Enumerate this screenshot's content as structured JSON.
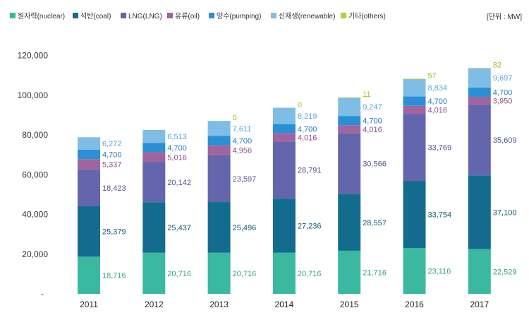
{
  "chart_data": {
    "type": "bar",
    "stacked": true,
    "unit_label": "[단위 : MW]",
    "categories": [
      "2011",
      "2012",
      "2013",
      "2014",
      "2015",
      "2016",
      "2017"
    ],
    "y_ticks": [
      "-",
      "20,000",
      "40,000",
      "60,000",
      "80,000",
      "100,000",
      "120,000"
    ],
    "ylim": [
      0,
      120000
    ],
    "legend_position": "top-left",
    "series": [
      {
        "name": "원자력(nuclear)",
        "color": "#3bb8a0",
        "label_color": "#2ea58d",
        "values": [
          18716,
          20716,
          20716,
          20716,
          21716,
          23116,
          22529
        ],
        "labels": [
          "18,716",
          "20,716",
          "20,716",
          "20,716",
          "21,716",
          "23,116",
          "22,529"
        ]
      },
      {
        "name": "석탄(coal)",
        "color": "#136c8e",
        "label_color": "#105b78",
        "values": [
          25379,
          25437,
          25496,
          27236,
          28557,
          33754,
          37100
        ],
        "labels": [
          "25,379",
          "25,437",
          "25,496",
          "27,236",
          "28,557",
          "33,754",
          "37,100"
        ]
      },
      {
        "name": "LNG(LNG)",
        "color": "#6366ad",
        "label_color": "#4f5298",
        "values": [
          18423,
          20142,
          23597,
          28791,
          30566,
          33769,
          35609
        ],
        "labels": [
          "18,423",
          "20,142",
          "23,597",
          "28,791",
          "30,566",
          "33,769",
          "35,609"
        ]
      },
      {
        "name": "유류(oil)",
        "color": "#a1649f",
        "label_color": "#8d4f8b",
        "values": [
          5337,
          5016,
          4956,
          4016,
          4016,
          4016,
          3950
        ],
        "labels": [
          "5,337",
          "5,016",
          "4,956",
          "4,016",
          "4,016",
          "4,016",
          "3,950"
        ]
      },
      {
        "name": "양수(pumping)",
        "color": "#2b8fd6",
        "label_color": "#1f7cc0",
        "values": [
          4700,
          4700,
          4700,
          4700,
          4700,
          4700,
          4700
        ],
        "labels": [
          "4,700",
          "4,700",
          "4,700",
          "4,700",
          "4,700",
          "4,700",
          "4,700"
        ]
      },
      {
        "name": "신재생(renewable)",
        "color": "#7fbde6",
        "label_color": "#5aa6da",
        "values": [
          6272,
          6513,
          7611,
          8219,
          9247,
          8834,
          9697
        ],
        "labels": [
          "6,272",
          "6,513",
          "7,611",
          "8,219",
          "9,247",
          "8,834",
          "9,697"
        ]
      },
      {
        "name": "기타(others)",
        "color": "#b5cf3a",
        "label_color": "#a3bd26",
        "values": [
          0,
          0,
          0,
          0,
          11,
          57,
          82
        ],
        "labels": [
          "",
          "",
          "0",
          "0",
          "11",
          "57",
          "82"
        ]
      }
    ]
  }
}
